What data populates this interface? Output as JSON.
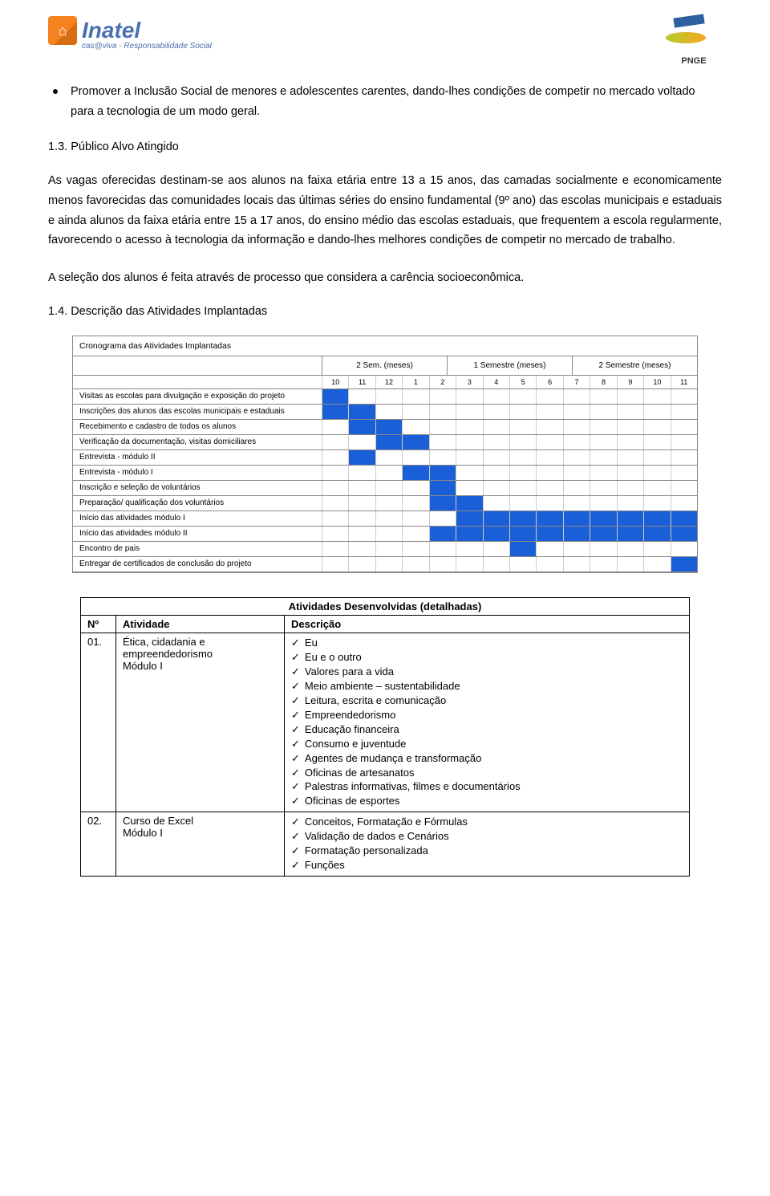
{
  "header": {
    "brand_main": "Inatel",
    "brand_sub": "cas@viva - Responsabilidade Social",
    "brand_icon_char": "⌂",
    "right_label": "PNGE"
  },
  "bullet": {
    "text": "Promover a Inclusão Social de menores e adolescentes carentes, dando-lhes condições de competir no mercado voltado para a tecnologia de um modo geral."
  },
  "heading_1_3": "1.3. Público Alvo Atingido",
  "para_1_3": "As vagas oferecidas destinam-se aos alunos na faixa etária entre 13 a 15 anos, das camadas socialmente e economicamente menos favorecidas das comunidades locais das últimas séries do ensino fundamental (9º ano) das escolas municipais e estaduais e ainda alunos da faixa etária entre 15 a 17 anos, do ensino médio das escolas estaduais, que frequentem a escola regularmente, favorecendo o acesso à tecnologia da informação e dando-lhes melhores condições de competir no mercado de trabalho.",
  "para_selecao": "A seleção dos alunos é feita através de processo que considera a carência socioeconômica.",
  "heading_1_4": "1.4. Descrição das Atividades Implantadas",
  "cronograma": {
    "title": "Cronograma das Atividades Implantadas",
    "spans": [
      "2 Sem. (meses)",
      "1 Semestre (meses)",
      "2 Semestre (meses)"
    ],
    "months": [
      "10",
      "11",
      "12",
      "1",
      "2",
      "3",
      "4",
      "5",
      "6",
      "7",
      "8",
      "9",
      "10",
      "11"
    ],
    "extra_col": "1",
    "fill_color": "#1a5fd8",
    "border_color": "#888888",
    "rows": [
      {
        "label": "Visitas as escolas para divulgação e exposição do projeto",
        "cells": [
          1,
          0,
          0,
          0,
          0,
          0,
          0,
          0,
          0,
          0,
          0,
          0,
          0,
          0
        ]
      },
      {
        "label": "Inscrições dos alunos das escolas municipais e estaduais",
        "cells": [
          1,
          1,
          0,
          0,
          0,
          0,
          0,
          0,
          0,
          0,
          0,
          0,
          0,
          0
        ]
      },
      {
        "label": "Recebimento e cadastro de todos os alunos",
        "cells": [
          0,
          1,
          1,
          0,
          0,
          0,
          0,
          0,
          0,
          0,
          0,
          0,
          0,
          0
        ]
      },
      {
        "label": "Verificação da documentação, visitas domiciliares",
        "cells": [
          0,
          0,
          1,
          1,
          0,
          0,
          0,
          0,
          0,
          0,
          0,
          0,
          0,
          0
        ]
      },
      {
        "label": "Entrevista - módulo II",
        "cells": [
          0,
          1,
          0,
          0,
          0,
          0,
          0,
          0,
          0,
          0,
          0,
          0,
          0,
          0
        ]
      },
      {
        "label": "Entrevista - módulo I",
        "cells": [
          0,
          0,
          0,
          1,
          1,
          0,
          0,
          0,
          0,
          0,
          0,
          0,
          0,
          0
        ]
      },
      {
        "label": "Inscrição e seleção de voluntários",
        "cells": [
          0,
          0,
          0,
          0,
          1,
          0,
          0,
          0,
          0,
          0,
          0,
          0,
          0,
          0
        ]
      },
      {
        "label": "Preparação/ qualificação dos voluntários",
        "cells": [
          0,
          0,
          0,
          0,
          1,
          1,
          0,
          0,
          0,
          0,
          0,
          0,
          0,
          0
        ]
      },
      {
        "label": "Início das atividades módulo I",
        "cells": [
          0,
          0,
          0,
          0,
          0,
          1,
          1,
          1,
          1,
          1,
          1,
          1,
          1,
          1
        ]
      },
      {
        "label": "Início das atividades módulo II",
        "cells": [
          0,
          0,
          0,
          0,
          1,
          1,
          1,
          1,
          1,
          1,
          1,
          1,
          1,
          1
        ]
      },
      {
        "label": "Encontro de pais",
        "cells": [
          0,
          0,
          0,
          0,
          0,
          0,
          0,
          1,
          0,
          0,
          0,
          0,
          0,
          0
        ]
      },
      {
        "label": "Entregar de certificados de conclusão do projeto",
        "cells": [
          0,
          0,
          0,
          0,
          0,
          0,
          0,
          0,
          0,
          0,
          0,
          0,
          0,
          1
        ]
      }
    ]
  },
  "atividades": {
    "title": "Atividades Desenvolvidas (detalhadas)",
    "col_n": "Nº",
    "col_act": "Atividade",
    "col_desc": "Descrição",
    "rows": [
      {
        "n": "01.",
        "atividade": "Ética, cidadania e empreendedorismo\nMódulo I",
        "items": [
          "Eu",
          "Eu e o outro",
          "Valores para a vida",
          "Meio ambiente – sustentabilidade",
          "Leitura, escrita e comunicação",
          "Empreendedorismo",
          "Educação financeira",
          "Consumo e juventude",
          "Agentes de mudança e transformação",
          "Oficinas de artesanatos",
          "Palestras informativas, filmes e documentários",
          "Oficinas de esportes"
        ]
      },
      {
        "n": "02.",
        "atividade": "Curso de Excel\nMódulo I",
        "items": [
          "Conceitos, Formatação e Fórmulas",
          "Validação de dados e Cenários",
          "Formatação personalizada",
          "Funções"
        ]
      }
    ]
  }
}
